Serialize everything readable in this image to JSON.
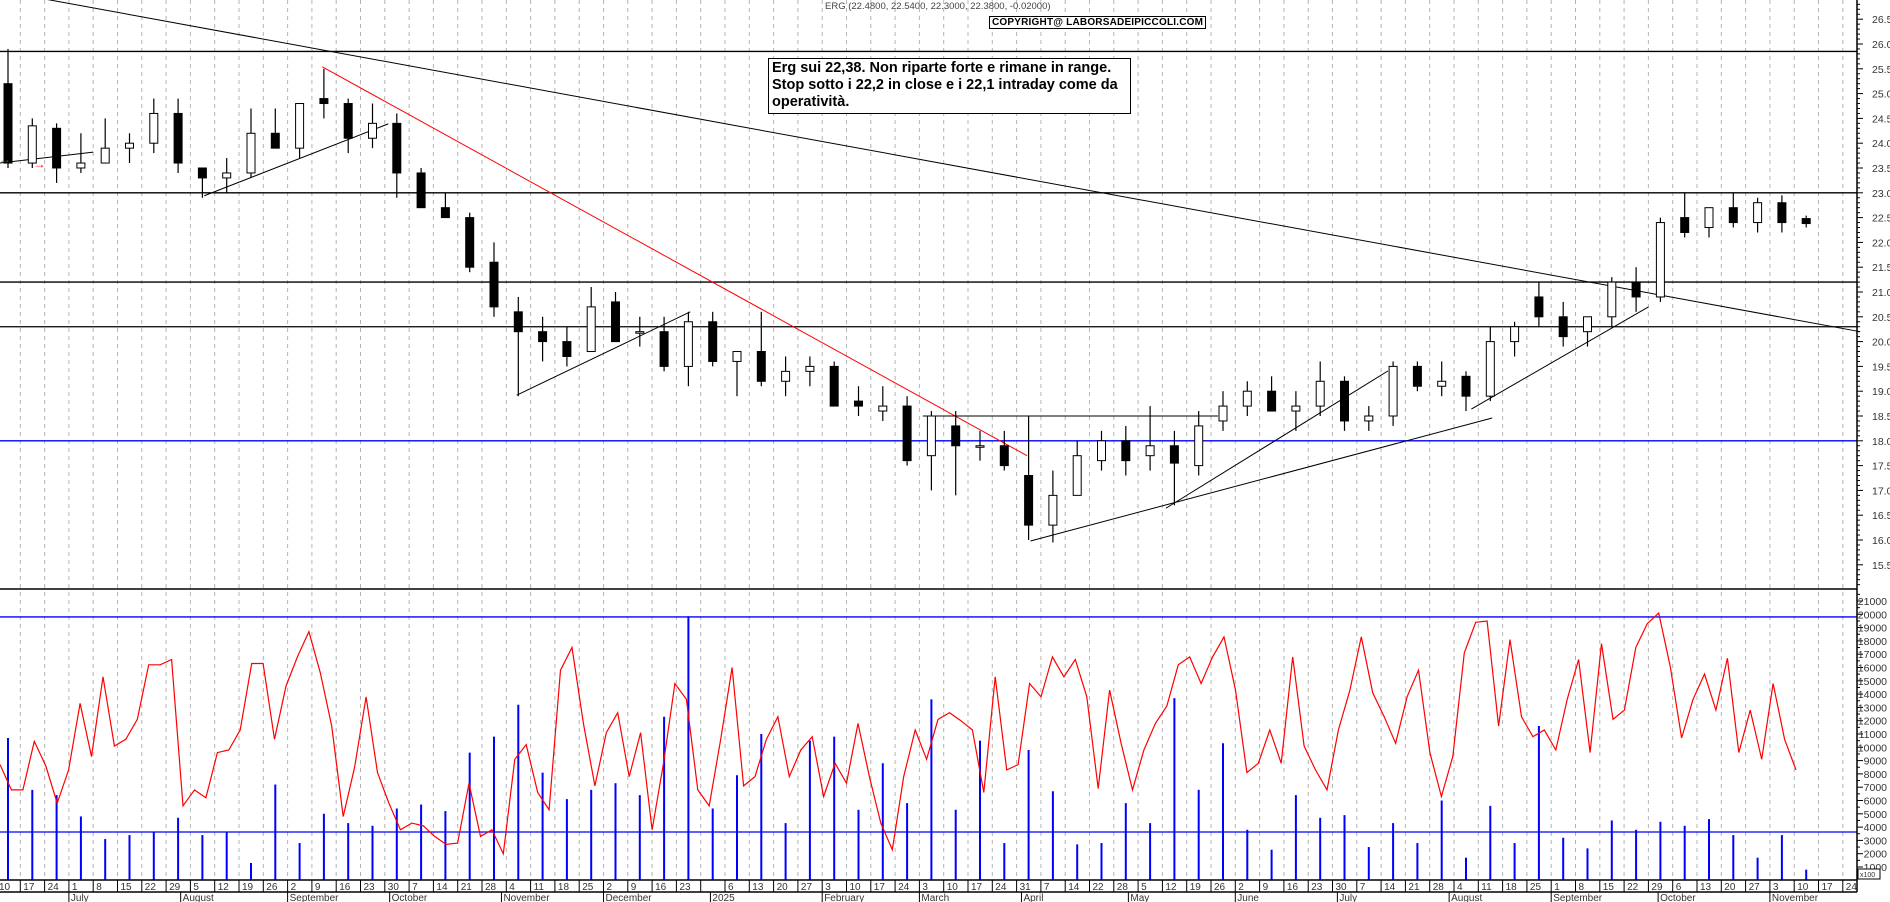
{
  "header": {
    "quote_line": "ERG (22.4800, 22.5400, 22.3000, 22.3800, -0.02000)",
    "copyright": "COPYRIGHT@ LABORSADEIPICCOLI.COM"
  },
  "annotation": {
    "lines": [
      "Erg sui 22,38. Non riparte forte e rimane in range.",
      "Stop sotto i 22,2 in close e i 22,1 intraday come da",
      "operatività."
    ]
  },
  "colors": {
    "candle_down": "#000000",
    "candle_up": "#ffffff",
    "volume": "#0000ff",
    "oscillator": "#ff0000",
    "support_level": "#0000ff",
    "downtrend_line": "#ff0000",
    "grid": "#b4b4b4"
  },
  "chart_data": [
    {
      "type": "candlestick",
      "title": "ERG",
      "ylim": [
        15.1,
        26.9
      ],
      "y_ticks": [
        "15.5",
        "16.0",
        "16.5",
        "17.0",
        "17.5",
        "18.0",
        "18.5",
        "19.0",
        "19.5",
        "20.0",
        "20.5",
        "21.0",
        "21.5",
        "22.0",
        "22.5",
        "23.0",
        "23.5",
        "24.0",
        "24.5",
        "25.0",
        "25.5",
        "26.0",
        "26.5"
      ],
      "grid": "vertical dashed weekly",
      "horizontal_levels": [
        25.85,
        23.0,
        21.2,
        20.3
      ],
      "blue_levels": [
        18.0
      ],
      "trendlines": [
        {
          "color": "black",
          "from": [
            "2024-06-23",
            26.92
          ],
          "to": [
            "2025-11-29",
            20.2
          ]
        },
        {
          "color": "red",
          "from": [
            "2024-09-12",
            25.54
          ],
          "to": [
            "2025-04-03",
            17.7
          ]
        },
        {
          "color": "black",
          "from": [
            "2024-06-11",
            23.6
          ],
          "to": [
            "2024-07-08",
            23.82
          ]
        },
        {
          "color": "black",
          "from": [
            "2024-08-09",
            22.94
          ],
          "to": [
            "2024-10-01",
            24.39
          ]
        },
        {
          "color": "black",
          "from": [
            "2024-11-07",
            18.92
          ],
          "to": [
            "2024-12-27",
            20.6
          ]
        },
        {
          "color": "black",
          "from": [
            "2025-03-04",
            18.5
          ],
          "to": [
            "2025-05-28",
            18.5
          ]
        },
        {
          "color": "black",
          "from": [
            "2025-04-04",
            15.98
          ],
          "to": [
            "2025-08-15",
            18.46
          ]
        },
        {
          "color": "black",
          "from": [
            "2025-05-13",
            16.64
          ],
          "to": [
            "2025-07-16",
            19.41
          ]
        },
        {
          "color": "black",
          "from": [
            "2025-08-09",
            18.64
          ],
          "to": [
            "2025-09-29",
            20.7
          ]
        }
      ],
      "markers": [
        {
          "icon": "green-arrow-right-icon",
          "color": "#008000",
          "date": "2024-06-12",
          "price": 23.68
        },
        {
          "icon": "red-arrow-right-icon",
          "color": "#ff0000",
          "date": "2024-06-22",
          "price": 23.58
        }
      ],
      "candles": [
        {
          "week": "2024-06-10",
          "o": 25.2,
          "h": 25.9,
          "l": 23.5,
          "c": 23.6,
          "v": 10700
        },
        {
          "week": "2024-06-17",
          "o": 23.6,
          "h": 24.5,
          "l": 23.5,
          "c": 24.35,
          "v": 6800
        },
        {
          "week": "2024-06-24",
          "o": 24.3,
          "h": 24.4,
          "l": 23.2,
          "c": 23.5,
          "v": 6400
        },
        {
          "week": "2024-07-01",
          "o": 23.5,
          "h": 24.2,
          "l": 23.4,
          "c": 23.6,
          "v": 4800
        },
        {
          "week": "2024-07-08",
          "o": 23.6,
          "h": 24.5,
          "l": 23.6,
          "c": 23.9,
          "v": 3100
        },
        {
          "week": "2024-07-15",
          "o": 23.9,
          "h": 24.2,
          "l": 23.6,
          "c": 24.0,
          "v": 3400
        },
        {
          "week": "2024-07-22",
          "o": 24.0,
          "h": 24.9,
          "l": 23.8,
          "c": 24.6,
          "v": 3600
        },
        {
          "week": "2024-07-29",
          "o": 24.6,
          "h": 24.9,
          "l": 23.4,
          "c": 23.6,
          "v": 4700
        },
        {
          "week": "2024-08-05",
          "o": 23.5,
          "h": 23.5,
          "l": 22.9,
          "c": 23.3,
          "v": 3400
        },
        {
          "week": "2024-08-12",
          "o": 23.3,
          "h": 23.7,
          "l": 23.0,
          "c": 23.4,
          "v": 3600
        },
        {
          "week": "2024-08-19",
          "o": 23.4,
          "h": 24.7,
          "l": 23.3,
          "c": 24.2,
          "v": 1300
        },
        {
          "week": "2024-08-26",
          "o": 24.2,
          "h": 24.7,
          "l": 23.9,
          "c": 23.9,
          "v": 7200
        },
        {
          "week": "2024-09-02",
          "o": 23.9,
          "h": 24.8,
          "l": 23.7,
          "c": 24.8,
          "v": 2800
        },
        {
          "week": "2024-09-09",
          "o": 24.9,
          "h": 25.5,
          "l": 24.5,
          "c": 24.8,
          "v": 5000
        },
        {
          "week": "2024-09-16",
          "o": 24.8,
          "h": 24.9,
          "l": 23.8,
          "c": 24.1,
          "v": 4300
        },
        {
          "week": "2024-09-23",
          "o": 24.1,
          "h": 24.8,
          "l": 23.9,
          "c": 24.4,
          "v": 4100
        },
        {
          "week": "2024-09-30",
          "o": 24.4,
          "h": 24.6,
          "l": 22.9,
          "c": 23.4,
          "v": 5400
        },
        {
          "week": "2024-10-07",
          "o": 23.4,
          "h": 23.5,
          "l": 22.7,
          "c": 22.7,
          "v": 5700
        },
        {
          "week": "2024-10-14",
          "o": 22.7,
          "h": 23.0,
          "l": 22.5,
          "c": 22.5,
          "v": 5200
        },
        {
          "week": "2024-10-21",
          "o": 22.5,
          "h": 22.6,
          "l": 21.4,
          "c": 21.5,
          "v": 9600
        },
        {
          "week": "2024-10-28",
          "o": 21.6,
          "h": 22.0,
          "l": 20.5,
          "c": 20.7,
          "v": 10800
        },
        {
          "week": "2024-11-04",
          "o": 20.6,
          "h": 20.9,
          "l": 18.9,
          "c": 20.2,
          "v": 13200
        },
        {
          "week": "2024-11-11",
          "o": 20.2,
          "h": 20.5,
          "l": 19.6,
          "c": 20.0,
          "v": 8100
        },
        {
          "week": "2024-11-18",
          "o": 20.0,
          "h": 20.3,
          "l": 19.5,
          "c": 19.7,
          "v": 6100
        },
        {
          "week": "2024-11-25",
          "o": 19.8,
          "h": 21.1,
          "l": 19.8,
          "c": 20.7,
          "v": 6800
        },
        {
          "week": "2024-12-02",
          "o": 20.8,
          "h": 21.0,
          "l": 20.0,
          "c": 20.0,
          "v": 7300
        },
        {
          "week": "2024-12-09",
          "o": 20.2,
          "h": 20.5,
          "l": 19.9,
          "c": 20.2,
          "v": 6400
        },
        {
          "week": "2024-12-16",
          "o": 20.2,
          "h": 20.5,
          "l": 19.4,
          "c": 19.5,
          "v": 12300
        },
        {
          "week": "2024-12-23",
          "o": 19.5,
          "h": 20.6,
          "l": 19.1,
          "c": 20.4,
          "v": 19850
        },
        {
          "week": "2024-12-30",
          "o": 20.4,
          "h": 20.6,
          "l": 19.5,
          "c": 19.6,
          "v": 5400
        },
        {
          "week": "2025-01-06",
          "o": 19.6,
          "h": 19.8,
          "l": 18.9,
          "c": 19.8,
          "v": 7900
        },
        {
          "week": "2025-01-13",
          "o": 19.8,
          "h": 20.6,
          "l": 19.1,
          "c": 19.2,
          "v": 11000
        },
        {
          "week": "2025-01-20",
          "o": 19.2,
          "h": 19.7,
          "l": 18.9,
          "c": 19.4,
          "v": 4300
        },
        {
          "week": "2025-01-27",
          "o": 19.4,
          "h": 19.7,
          "l": 19.1,
          "c": 19.5,
          "v": 10500
        },
        {
          "week": "2025-02-03",
          "o": 19.5,
          "h": 19.6,
          "l": 18.7,
          "c": 18.7,
          "v": 10800
        },
        {
          "week": "2025-02-10",
          "o": 18.8,
          "h": 19.1,
          "l": 18.5,
          "c": 18.7,
          "v": 5300
        },
        {
          "week": "2025-02-17",
          "o": 18.6,
          "h": 19.1,
          "l": 18.4,
          "c": 18.7,
          "v": 8800
        },
        {
          "week": "2025-02-24",
          "o": 18.7,
          "h": 18.9,
          "l": 17.5,
          "c": 17.6,
          "v": 5800
        },
        {
          "week": "2025-03-03",
          "o": 17.7,
          "h": 18.6,
          "l": 17.0,
          "c": 18.5,
          "v": 13600
        },
        {
          "week": "2025-03-10",
          "o": 18.3,
          "h": 18.6,
          "l": 16.9,
          "c": 17.9,
          "v": 5300
        },
        {
          "week": "2025-03-17",
          "o": 17.9,
          "h": 18.2,
          "l": 17.6,
          "c": 17.9,
          "v": 10500
        },
        {
          "week": "2025-03-24",
          "o": 17.9,
          "h": 18.2,
          "l": 17.4,
          "c": 17.5,
          "v": 2800
        },
        {
          "week": "2025-03-31",
          "o": 17.3,
          "h": 18.5,
          "l": 16.0,
          "c": 16.3,
          "v": 9800
        },
        {
          "week": "2025-04-07",
          "o": 16.3,
          "h": 17.4,
          "l": 15.95,
          "c": 16.9,
          "v": 6700
        },
        {
          "week": "2025-04-14",
          "o": 16.9,
          "h": 18.0,
          "l": 16.9,
          "c": 17.7,
          "v": 2700
        },
        {
          "week": "2025-04-21",
          "o": 17.6,
          "h": 18.2,
          "l": 17.4,
          "c": 18.0,
          "v": 2800
        },
        {
          "week": "2025-04-28",
          "o": 18.0,
          "h": 18.3,
          "l": 17.3,
          "c": 17.6,
          "v": 5800
        },
        {
          "week": "2025-05-05",
          "o": 17.7,
          "h": 18.7,
          "l": 17.4,
          "c": 17.9,
          "v": 4300
        },
        {
          "week": "2025-05-12",
          "o": 17.9,
          "h": 18.2,
          "l": 16.7,
          "c": 17.55,
          "v": 13700
        },
        {
          "week": "2025-05-19",
          "o": 17.5,
          "h": 18.6,
          "l": 17.3,
          "c": 18.3,
          "v": 6800
        },
        {
          "week": "2025-05-26",
          "o": 18.4,
          "h": 19.0,
          "l": 18.2,
          "c": 18.7,
          "v": 10300
        },
        {
          "week": "2025-06-02",
          "o": 18.7,
          "h": 19.2,
          "l": 18.5,
          "c": 19.0,
          "v": 3800
        },
        {
          "week": "2025-06-09",
          "o": 19.0,
          "h": 19.3,
          "l": 18.6,
          "c": 18.6,
          "v": 2300
        },
        {
          "week": "2025-06-16",
          "o": 18.6,
          "h": 19.0,
          "l": 18.2,
          "c": 18.7,
          "v": 6400
        },
        {
          "week": "2025-06-23",
          "o": 18.7,
          "h": 19.6,
          "l": 18.5,
          "c": 19.2,
          "v": 4700
        },
        {
          "week": "2025-06-30",
          "o": 19.2,
          "h": 19.3,
          "l": 18.2,
          "c": 18.4,
          "v": 4900
        },
        {
          "week": "2025-07-07",
          "o": 18.4,
          "h": 18.7,
          "l": 18.2,
          "c": 18.5,
          "v": 2500
        },
        {
          "week": "2025-07-14",
          "o": 18.5,
          "h": 19.6,
          "l": 18.3,
          "c": 19.5,
          "v": 4300
        },
        {
          "week": "2025-07-21",
          "o": 19.5,
          "h": 19.6,
          "l": 19.0,
          "c": 19.1,
          "v": 2800
        },
        {
          "week": "2025-07-28",
          "o": 19.1,
          "h": 19.6,
          "l": 18.9,
          "c": 19.2,
          "v": 6000
        },
        {
          "week": "2025-08-04",
          "o": 19.3,
          "h": 19.4,
          "l": 18.6,
          "c": 18.9,
          "v": 1700
        },
        {
          "week": "2025-08-11",
          "o": 18.9,
          "h": 20.3,
          "l": 18.8,
          "c": 20.0,
          "v": 5600
        },
        {
          "week": "2025-08-18",
          "o": 20.0,
          "h": 20.4,
          "l": 19.7,
          "c": 20.3,
          "v": 2800
        },
        {
          "week": "2025-08-25",
          "o": 20.9,
          "h": 21.2,
          "l": 20.3,
          "c": 20.5,
          "v": 11600
        },
        {
          "week": "2025-09-01",
          "o": 20.5,
          "h": 20.8,
          "l": 19.9,
          "c": 20.1,
          "v": 3200
        },
        {
          "week": "2025-09-08",
          "o": 20.2,
          "h": 20.5,
          "l": 19.9,
          "c": 20.5,
          "v": 2400
        },
        {
          "week": "2025-09-15",
          "o": 20.5,
          "h": 21.3,
          "l": 20.3,
          "c": 21.2,
          "v": 4500
        },
        {
          "week": "2025-09-22",
          "o": 21.2,
          "h": 21.5,
          "l": 20.6,
          "c": 20.9,
          "v": 3800
        },
        {
          "week": "2025-09-29",
          "o": 20.9,
          "h": 22.5,
          "l": 20.8,
          "c": 22.4,
          "v": 4400
        },
        {
          "week": "2025-10-06",
          "o": 22.5,
          "h": 23.0,
          "l": 22.1,
          "c": 22.2,
          "v": 4100
        },
        {
          "week": "2025-10-13",
          "o": 22.3,
          "h": 22.7,
          "l": 22.1,
          "c": 22.7,
          "v": 4600
        },
        {
          "week": "2025-10-20",
          "o": 22.7,
          "h": 23.0,
          "l": 22.3,
          "c": 22.4,
          "v": 3400
        },
        {
          "week": "2025-10-27",
          "o": 22.4,
          "h": 22.9,
          "l": 22.2,
          "c": 22.8,
          "v": 1700
        },
        {
          "week": "2025-11-03",
          "o": 22.8,
          "h": 22.95,
          "l": 22.2,
          "c": 22.4,
          "v": 3400
        },
        {
          "week": "2025-11-10",
          "o": 22.48,
          "h": 22.54,
          "l": 22.3,
          "c": 22.38,
          "v": 800
        }
      ]
    },
    {
      "type": "bar+line",
      "ylim": [
        0,
        21700
      ],
      "y_ticks": [
        "1000",
        "2000",
        "3000",
        "4000",
        "5000",
        "6000",
        "7000",
        "8000",
        "9000",
        "10000",
        "11000",
        "12000",
        "13000",
        "14000",
        "15000",
        "16000",
        "17000",
        "18000",
        "19000",
        "20000",
        "21000"
      ],
      "y_unit_label": "x100",
      "blue_levels": [
        19800,
        3630
      ],
      "volume_series": "candles[].v",
      "oscillator_values": [
        8700,
        6800,
        6800,
        10450,
        8600,
        5800,
        8300,
        13300,
        9300,
        15300,
        10100,
        10600,
        12100,
        16200,
        16200,
        16600,
        5600,
        6800,
        6200,
        9600,
        9800,
        11300,
        16300,
        16300,
        10600,
        14600,
        16800,
        18700,
        15600,
        11600,
        4800,
        8500,
        13800,
        8100,
        5800,
        3800,
        4300,
        4100,
        3300,
        2700,
        2800,
        7300,
        3300,
        3800,
        2000,
        9100,
        10200,
        6600,
        5300,
        15800,
        17500,
        11800,
        7100,
        11100,
        12600,
        7800,
        11100,
        3800,
        8800,
        14800,
        13600,
        6800,
        5600,
        10600,
        16000,
        7100,
        7800,
        10600,
        12300,
        7800,
        9800,
        10800,
        6300,
        8800,
        7300,
        11800,
        7800,
        4300,
        2300,
        7800,
        11300,
        9100,
        12100,
        12600,
        12000,
        11300,
        6600,
        15300,
        8300,
        8700,
        14800,
        13800,
        16800,
        15300,
        16600,
        13800,
        6900,
        14300,
        10300,
        6800,
        9800,
        11800,
        13100,
        16200,
        16800,
        14800,
        16800,
        18300,
        14300,
        8100,
        8800,
        11300,
        8800,
        16800,
        10100,
        8300,
        6800,
        11300,
        14300,
        18300,
        14100,
        12300,
        10300,
        13800,
        15800,
        9600,
        6300,
        9300,
        17100,
        19400,
        19500,
        11600,
        18100,
        12300,
        10800,
        11300,
        9800,
        13600,
        16600,
        9600,
        17800,
        12100,
        12800,
        17500,
        19300,
        20100,
        16100,
        10700,
        13600,
        15500,
        12800,
        16700,
        9600,
        12800,
        9100,
        14800,
        10600,
        8300
      ]
    }
  ],
  "x_axis": {
    "week_labels": [
      "10",
      "17",
      "24",
      "1",
      "8",
      "15",
      "22",
      "29",
      "5",
      "12",
      "19",
      "26",
      "2",
      "9",
      "16",
      "23",
      "30",
      "7",
      "14",
      "21",
      "28",
      "4",
      "11",
      "18",
      "25",
      "2",
      "9",
      "16",
      "23",
      "",
      "6",
      "13",
      "20",
      "27",
      "3",
      "10",
      "17",
      "24",
      "3",
      "10",
      "17",
      "24",
      "31",
      "7",
      "14",
      "22",
      "28",
      "5",
      "12",
      "19",
      "26",
      "2",
      "9",
      "16",
      "23",
      "30",
      "7",
      "14",
      "21",
      "28",
      "4",
      "11",
      "18",
      "25",
      "1",
      "8",
      "15",
      "22",
      "29",
      "6",
      "13",
      "20",
      "27",
      "3",
      "10",
      "17",
      "24"
    ],
    "month_labels": [
      "July",
      "August",
      "September",
      "October",
      "November",
      "December",
      "2025",
      "February",
      "March",
      "April",
      "May",
      "June",
      "July",
      "August",
      "September",
      "October",
      "November"
    ]
  }
}
